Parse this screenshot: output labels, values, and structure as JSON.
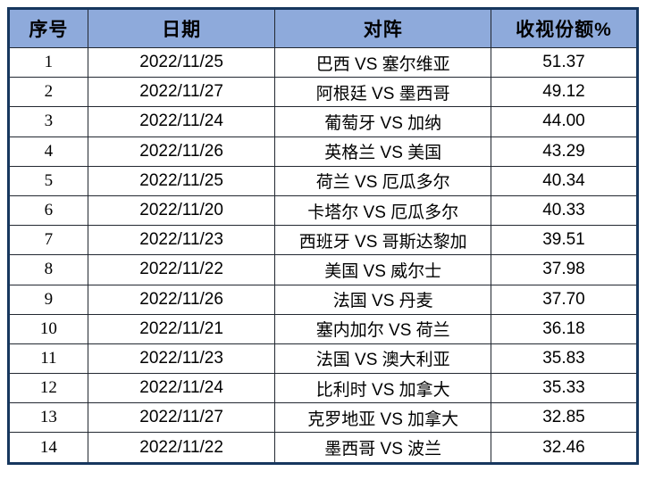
{
  "colors": {
    "header_bg": "#8EAADB",
    "outer_border": "#17375E",
    "inner_border": "#222831",
    "text": "#000000",
    "row_bg": "#FFFFFF"
  },
  "chart_data": {
    "type": "table",
    "columns": [
      {
        "key": "index",
        "label": "序号"
      },
      {
        "key": "date",
        "label": "日期"
      },
      {
        "key": "match",
        "label": "对阵"
      },
      {
        "key": "share",
        "label": "收视份额%"
      }
    ],
    "rows": [
      [
        "1",
        "2022/11/25",
        "巴西 VS 塞尔维亚",
        "51.37"
      ],
      [
        "2",
        "2022/11/27",
        "阿根廷 VS 墨西哥",
        "49.12"
      ],
      [
        "3",
        "2022/11/24",
        "葡萄牙 VS 加纳",
        "44.00"
      ],
      [
        "4",
        "2022/11/26",
        "英格兰 VS 美国",
        "43.29"
      ],
      [
        "5",
        "2022/11/25",
        "荷兰 VS 厄瓜多尔",
        "40.34"
      ],
      [
        "6",
        "2022/11/20",
        "卡塔尔 VS 厄瓜多尔",
        "40.33"
      ],
      [
        "7",
        "2022/11/23",
        "西班牙 VS 哥斯达黎加",
        "39.51"
      ],
      [
        "8",
        "2022/11/22",
        "美国 VS 威尔士",
        "37.98"
      ],
      [
        "9",
        "2022/11/26",
        "法国 VS 丹麦",
        "37.70"
      ],
      [
        "10",
        "2022/11/21",
        "塞内加尔 VS 荷兰",
        "36.18"
      ],
      [
        "11",
        "2022/11/23",
        "法国 VS 澳大利亚",
        "35.83"
      ],
      [
        "12",
        "2022/11/24",
        "比利时 VS 加拿大",
        "35.33"
      ],
      [
        "13",
        "2022/11/27",
        "克罗地亚 VS 加拿大",
        "32.85"
      ],
      [
        "14",
        "2022/11/22",
        "墨西哥 VS 波兰",
        "32.46"
      ]
    ]
  }
}
